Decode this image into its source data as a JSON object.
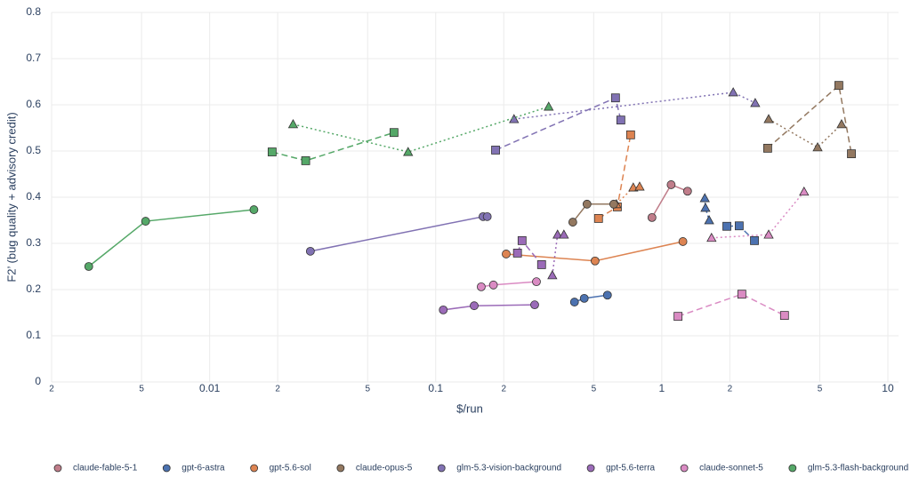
{
  "chart_data": {
    "type": "scatter",
    "x_label": "$/run",
    "y_label": "F2’ (bug quality + advisory credit)",
    "xscale": "log",
    "xlim": [
      0.002,
      11.15
    ],
    "ylim": [
      0,
      0.8
    ],
    "xticks": [
      {
        "value": 0.002,
        "label": "2"
      },
      {
        "value": 0.005,
        "label": "5"
      },
      0.01,
      {
        "value": 0.02,
        "label": "2"
      },
      {
        "value": 0.05,
        "label": "5"
      },
      0.1,
      {
        "value": 0.2,
        "label": "2"
      },
      {
        "value": 0.5,
        "label": "5"
      },
      1,
      {
        "value": 2,
        "label": "2"
      },
      {
        "value": 5,
        "label": "5"
      },
      10
    ],
    "yticks": [
      0,
      0.1,
      0.2,
      0.3,
      0.4,
      0.5,
      0.6,
      0.7,
      0.8
    ],
    "grid": true,
    "legend": "bottom",
    "series": [
      {
        "name": "claude-fable-5-1",
        "color": "#c07d8a",
        "traces": [
          {
            "symbol": "circle",
            "dash": "solid",
            "x": [
              0.905,
              1.1,
              1.3
            ],
            "values": [
              0.356,
              0.427,
              0.413
            ]
          }
        ]
      },
      {
        "name": "gpt-6-astra",
        "color": "#4c72b0",
        "traces": [
          {
            "symbol": "circle",
            "dash": "solid",
            "x": [
              0.411,
              0.454,
              0.575
            ],
            "values": [
              0.173,
              0.181,
              0.188
            ]
          },
          {
            "symbol": "square",
            "dash": "dash",
            "x": [
              1.94,
              2.2,
              2.57
            ],
            "values": [
              0.337,
              0.338,
              0.306
            ]
          },
          {
            "symbol": "triangle",
            "dash": "dot",
            "x": [
              1.55,
              1.56,
              1.62
            ],
            "values": [
              0.398,
              0.377,
              0.35
            ]
          }
        ]
      },
      {
        "name": "gpt-5.6-sol",
        "color": "#dd8452",
        "traces": [
          {
            "symbol": "circle",
            "dash": "solid",
            "x": [
              0.205,
              0.507,
              1.24
            ],
            "values": [
              0.277,
              0.262,
              0.304
            ]
          },
          {
            "symbol": "square",
            "dash": "dash",
            "x": [
              0.525,
              0.636,
              0.728
            ],
            "values": [
              0.354,
              0.379,
              0.535
            ]
          },
          {
            "symbol": "triangle",
            "dash": "dot",
            "x": [
              0.63,
              0.748,
              0.798
            ],
            "values": [
              0.385,
              0.421,
              0.423
            ]
          }
        ]
      },
      {
        "name": "claude-opus-5",
        "color": "#937860",
        "traces": [
          {
            "symbol": "circle",
            "dash": "solid",
            "x": [
              0.404,
              0.467,
              0.613
            ],
            "values": [
              0.346,
              0.385,
              0.385
            ]
          },
          {
            "symbol": "square",
            "dash": "dash",
            "x": [
              2.94,
              6.07,
              6.9
            ],
            "values": [
              0.506,
              0.642,
              0.494
            ]
          },
          {
            "symbol": "triangle",
            "dash": "dot",
            "x": [
              2.97,
              4.89,
              6.24
            ],
            "values": [
              0.569,
              0.508,
              0.558
            ]
          }
        ]
      },
      {
        "name": "glm-5.3-vision-background",
        "color": "#8172b3",
        "traces": [
          {
            "symbol": "circle",
            "dash": "solid",
            "x": [
              0.0279,
              0.162,
              0.169
            ],
            "values": [
              0.283,
              0.358,
              0.358
            ]
          },
          {
            "symbol": "square",
            "dash": "dash",
            "x": [
              0.184,
              0.624,
              0.659
            ],
            "values": [
              0.502,
              0.615,
              0.567
            ]
          },
          {
            "symbol": "triangle",
            "dash": "dot",
            "x": [
              0.222,
              2.07,
              2.59
            ],
            "values": [
              0.569,
              0.627,
              0.604
            ]
          }
        ]
      },
      {
        "name": "gpt-5.6-terra",
        "color": "#9b6bb8",
        "traces": [
          {
            "symbol": "circle",
            "dash": "solid",
            "x": [
              0.108,
              0.148,
              0.274
            ],
            "values": [
              0.156,
              0.165,
              0.167
            ]
          },
          {
            "symbol": "square",
            "dash": "dash",
            "x": [
              0.23,
              0.241,
              0.294
            ],
            "values": [
              0.279,
              0.306,
              0.254
            ]
          },
          {
            "symbol": "triangle",
            "dash": "dot",
            "x": [
              0.328,
              0.346,
              0.369
            ],
            "values": [
              0.231,
              0.319,
              0.319
            ]
          }
        ]
      },
      {
        "name": "claude-sonnet-5",
        "color": "#da8bc3",
        "traces": [
          {
            "symbol": "circle",
            "dash": "solid",
            "x": [
              0.159,
              0.18,
              0.279
            ],
            "values": [
              0.206,
              0.21,
              0.217
            ]
          },
          {
            "symbol": "square",
            "dash": "dash",
            "x": [
              1.18,
              2.26,
              3.49
            ],
            "values": [
              0.142,
              0.19,
              0.144
            ]
          },
          {
            "symbol": "triangle",
            "dash": "dot",
            "x": [
              1.66,
              2.97,
              4.26
            ],
            "values": [
              0.312,
              0.319,
              0.412
            ]
          }
        ]
      },
      {
        "name": "glm-5.3-flash-background",
        "color": "#55a868",
        "traces": [
          {
            "symbol": "circle",
            "dash": "solid",
            "x": [
              0.00292,
              0.00521,
              0.0157
            ],
            "values": [
              0.25,
              0.348,
              0.373
            ]
          },
          {
            "symbol": "square",
            "dash": "dash",
            "x": [
              0.0189,
              0.0266,
              0.0654
            ],
            "values": [
              0.498,
              0.479,
              0.54
            ]
          },
          {
            "symbol": "triangle",
            "dash": "dot",
            "x": [
              0.0234,
              0.0755,
              0.316
            ],
            "values": [
              0.558,
              0.498,
              0.596
            ]
          }
        ]
      }
    ]
  }
}
